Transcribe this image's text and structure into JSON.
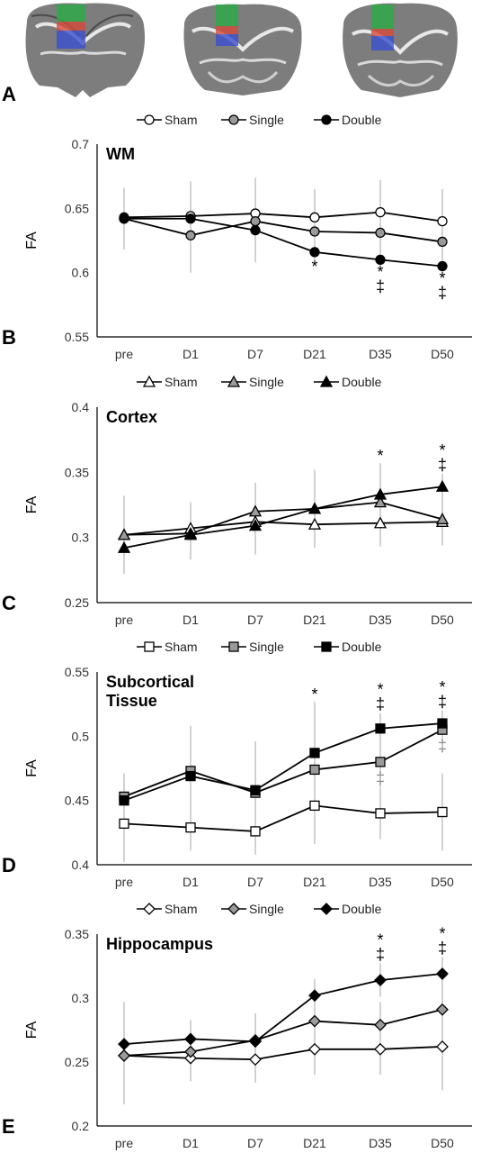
{
  "panel_letters": [
    "A",
    "B",
    "C",
    "D",
    "E"
  ],
  "legend_labels": [
    "Sham",
    "Single",
    "Double"
  ],
  "marker_shapes": [
    "circle",
    "triangle",
    "square",
    "diamond"
  ],
  "colors": {
    "sham_fill": "#ffffff",
    "single_fill": "#9a9a9a",
    "double_fill": "#000000",
    "line": "#000000",
    "error_bar": "#a6a6a6",
    "roi_green": "#2fa84a",
    "roi_red": "#d44a3a",
    "roi_blue": "#3a4fd0"
  },
  "chart_data": [
    {
      "type": "line",
      "title": "WM",
      "ylabel": "FA",
      "categories": [
        "pre",
        "D1",
        "D7",
        "D21",
        "D35",
        "D50"
      ],
      "ylim": [
        0.55,
        0.7
      ],
      "yticks": [
        "0.55",
        "0.6",
        "0.65",
        "0.7"
      ],
      "series": [
        {
          "name": "Sham",
          "values": [
            0.643,
            0.644,
            0.646,
            0.643,
            0.647,
            0.64
          ],
          "err": [
            0.022,
            0.027,
            0.028,
            0.022,
            0.025,
            0.025
          ]
        },
        {
          "name": "Single",
          "values": [
            0.642,
            0.629,
            0.64,
            0.632,
            0.631,
            0.624
          ],
          "err": [
            0.024,
            0.029,
            0.026,
            0.022,
            0.022,
            0.02
          ]
        },
        {
          "name": "Double",
          "values": [
            0.642,
            0.642,
            0.633,
            0.616,
            0.61,
            0.605
          ],
          "err": [
            0.02,
            0.022,
            0.025,
            0.01,
            0.008,
            0.008
          ]
        }
      ],
      "annotations": [
        {
          "x": "D21",
          "text": "*"
        },
        {
          "x": "D35",
          "text": "*\n‡"
        },
        {
          "x": "D50",
          "text": "*\n‡"
        }
      ]
    },
    {
      "type": "line",
      "title": "Cortex",
      "ylabel": "FA",
      "categories": [
        "pre",
        "D1",
        "D7",
        "D21",
        "D35",
        "D50"
      ],
      "ylim": [
        0.25,
        0.4
      ],
      "yticks": [
        "0.25",
        "0.3",
        "0.35",
        "0.4"
      ],
      "series": [
        {
          "name": "Sham",
          "values": [
            0.302,
            0.307,
            0.312,
            0.31,
            0.311,
            0.312
          ],
          "err": [
            0.03,
            0.02,
            0.018,
            0.018,
            0.018,
            0.018
          ]
        },
        {
          "name": "Single",
          "values": [
            0.302,
            0.303,
            0.32,
            0.322,
            0.327,
            0.314
          ],
          "err": [
            0.03,
            0.02,
            0.022,
            0.03,
            0.03,
            0.02
          ]
        },
        {
          "name": "Double",
          "values": [
            0.292,
            0.302,
            0.309,
            0.322,
            0.333,
            0.339
          ],
          "err": [
            0.012,
            0.012,
            0.022,
            0.03,
            0.01,
            0.01
          ]
        }
      ],
      "annotations": [
        {
          "x": "D35",
          "text": "*"
        },
        {
          "x": "D50",
          "text": "*\n‡"
        }
      ]
    },
    {
      "type": "line",
      "title": "Subcortical\nTissue",
      "ylabel": "FA",
      "categories": [
        "pre",
        "D1",
        "D7",
        "D21",
        "D35",
        "D50"
      ],
      "ylim": [
        0.4,
        0.55
      ],
      "yticks": [
        "0.4",
        "0.45",
        "0.5",
        "0.55"
      ],
      "series": [
        {
          "name": "Sham",
          "values": [
            0.432,
            0.429,
            0.426,
            0.446,
            0.44,
            0.441
          ],
          "err": [
            0.03,
            0.018,
            0.018,
            0.03,
            0.02,
            0.03
          ]
        },
        {
          "name": "Single",
          "values": [
            0.453,
            0.473,
            0.456,
            0.474,
            0.48,
            0.505
          ],
          "err": [
            0.018,
            0.035,
            0.04,
            0.025,
            0.02,
            0.015
          ]
        },
        {
          "name": "Double",
          "values": [
            0.45,
            0.469,
            0.458,
            0.487,
            0.506,
            0.51
          ],
          "err": [
            0.015,
            0.025,
            0.03,
            0.04,
            0.012,
            0.01
          ]
        }
      ],
      "annotations": [
        {
          "x": "D21",
          "text": "*"
        },
        {
          "x": "D35",
          "text": "*\n‡"
        },
        {
          "x": "D50",
          "text": "*\n‡"
        },
        {
          "x": "D35",
          "text": "‡",
          "color": "grey"
        },
        {
          "x": "D50",
          "text": "‡",
          "color": "grey"
        }
      ]
    },
    {
      "type": "line",
      "title": "Hippocampus",
      "ylabel": "FA",
      "categories": [
        "pre",
        "D1",
        "D7",
        "D21",
        "D35",
        "D50"
      ],
      "ylim": [
        0.2,
        0.35
      ],
      "yticks": [
        "0.2",
        "0.25",
        "0.3",
        "0.35"
      ],
      "series": [
        {
          "name": "Sham",
          "values": [
            0.255,
            0.253,
            0.252,
            0.26,
            0.26,
            0.262
          ],
          "err": [
            0.038,
            0.018,
            0.018,
            0.02,
            0.02,
            0.034
          ]
        },
        {
          "name": "Single",
          "values": [
            0.255,
            0.258,
            0.267,
            0.282,
            0.279,
            0.291
          ],
          "err": [
            0.02,
            0.015,
            0.02,
            0.02,
            0.018,
            0.02
          ]
        },
        {
          "name": "Double",
          "values": [
            0.264,
            0.268,
            0.266,
            0.302,
            0.314,
            0.319
          ],
          "err": [
            0.033,
            0.015,
            0.022,
            0.013,
            0.013,
            0.013
          ]
        }
      ],
      "annotations": [
        {
          "x": "D35",
          "text": "*\n‡"
        },
        {
          "x": "D50",
          "text": "*\n‡"
        }
      ]
    }
  ]
}
